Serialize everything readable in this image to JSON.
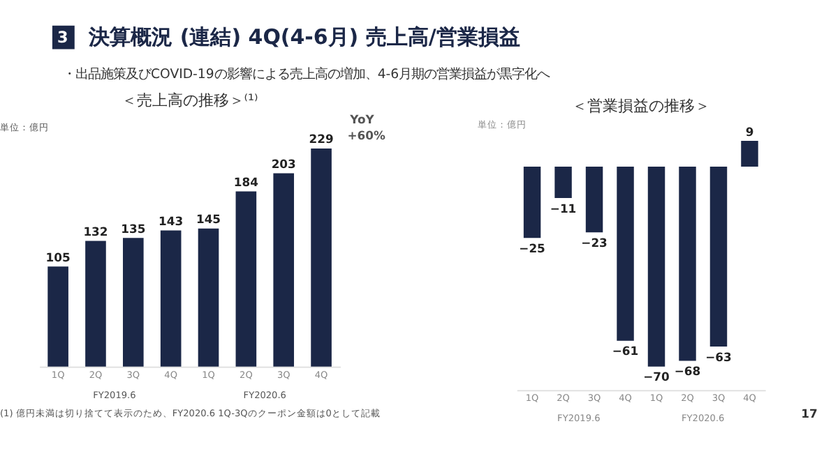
{
  "chart_data": [
    {
      "type": "bar",
      "title": "＜売上高の推移＞⁽¹⁾",
      "annotations": [
        "3",
        "決算概況 (連結) 4Q(4-6月) 売上高/営業損益",
        "・出品施策及びCOVID-19の影響による売上高の増加、4-6月期の営業損益が黒字化へ",
        "単位：億円",
        "YoY",
        "+60%",
        "FY2019.6",
        "FY2020.6",
        "(1) 億円未満は切り捨てて表示のため、FY2020.6 1Q-3Qのクーポン金額は0として記載",
        "17"
      ],
      "categories": [
        "1Q",
        "2Q",
        "3Q",
        "4Q",
        "1Q",
        "2Q",
        "3Q",
        "4Q"
      ],
      "values": [
        105,
        132,
        135,
        143,
        145,
        184,
        203,
        229
      ],
      "color": "#1b2747",
      "data_labels": true
    },
    {
      "type": "bar",
      "title": "＜営業損益の推移＞",
      "annotations": [
        "単位：億円",
        "FY2019.6",
        "FY2020.6"
      ],
      "categories": [
        "1Q",
        "2Q",
        "3Q",
        "4Q",
        "1Q",
        "2Q",
        "3Q",
        "4Q"
      ],
      "values": [
        -25,
        -11,
        -23,
        -61,
        -70,
        -68,
        -63,
        9
      ],
      "color": "#1b2747",
      "data_labels": true
    }
  ]
}
